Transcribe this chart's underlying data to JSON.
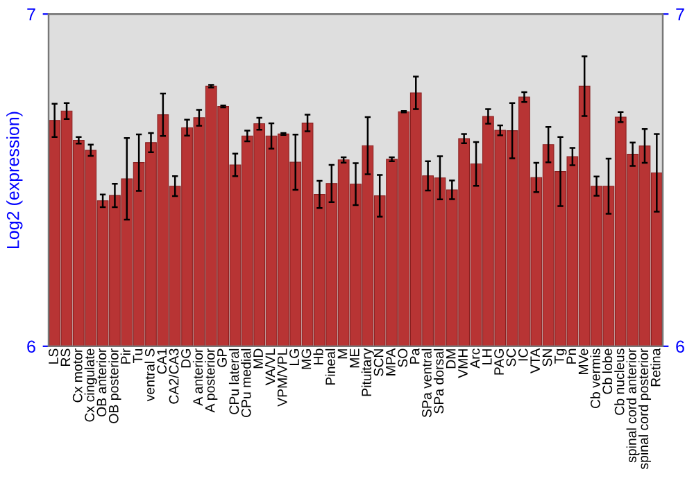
{
  "chart_data": {
    "type": "bar",
    "ylabel": "Log2 (expression)",
    "categories": [
      "LS",
      "RS",
      "Cx motor",
      "Cx cingulate",
      "OB anterior",
      "OB posterior",
      "Pir",
      "Tu",
      "ventral S",
      "CA1",
      "CA2/CA3",
      "DG",
      "A anterior",
      "A posterior",
      "GP",
      "CPu lateral",
      "CPu medial",
      "MD",
      "VA/VL",
      "VPM/VPL",
      "LG",
      "MG",
      "Hb",
      "Pineal",
      "M",
      "ME",
      "Pituitary",
      "SCN",
      "MPA",
      "SO",
      "Pa",
      "SPa ventral",
      "SPa dorsal",
      "DM",
      "VMH",
      "Arc",
      "LH",
      "PAG",
      "SC",
      "IC",
      "VTA",
      "SN",
      "Tg",
      "Pn",
      "MVe",
      "Cb vermis",
      "Cb lobe",
      "Cb nucleus",
      "spinal cord anterior",
      "spinal cord posterior",
      "Retina"
    ],
    "values": [
      6.68,
      6.708,
      6.62,
      6.59,
      6.438,
      6.454,
      6.504,
      6.553,
      6.613,
      6.697,
      6.482,
      6.658,
      6.688,
      6.783,
      6.722,
      6.546,
      6.633,
      6.67,
      6.633,
      6.639,
      6.554,
      6.672,
      6.457,
      6.49,
      6.561,
      6.488,
      6.604,
      6.453,
      6.563,
      6.706,
      6.763,
      6.513,
      6.507,
      6.471,
      6.625,
      6.549,
      6.692,
      6.65,
      6.649,
      6.75,
      6.508,
      6.607,
      6.526,
      6.571,
      6.783,
      6.482,
      6.482,
      6.69,
      6.578,
      6.603,
      6.522
    ],
    "errors": [
      0.05,
      0.024,
      0.01,
      0.017,
      0.019,
      0.035,
      0.123,
      0.085,
      0.029,
      0.064,
      0.03,
      0.024,
      0.024,
      0.004,
      0.003,
      0.034,
      0.016,
      0.018,
      0.038,
      0.003,
      0.083,
      0.025,
      0.041,
      0.056,
      0.008,
      0.063,
      0.086,
      0.063,
      0.006,
      0.002,
      0.049,
      0.044,
      0.065,
      0.028,
      0.014,
      0.066,
      0.022,
      0.015,
      0.083,
      0.015,
      0.044,
      0.053,
      0.104,
      0.026,
      0.09,
      0.029,
      0.083,
      0.015,
      0.035,
      0.051,
      0.117
    ],
    "color": "#b83434",
    "ylim": [
      6,
      7
    ],
    "yticks": [
      6,
      7
    ],
    "y2lim": [
      6,
      7
    ],
    "y2ticks": [
      6,
      7
    ],
    "grid": false,
    "legend": false
  }
}
